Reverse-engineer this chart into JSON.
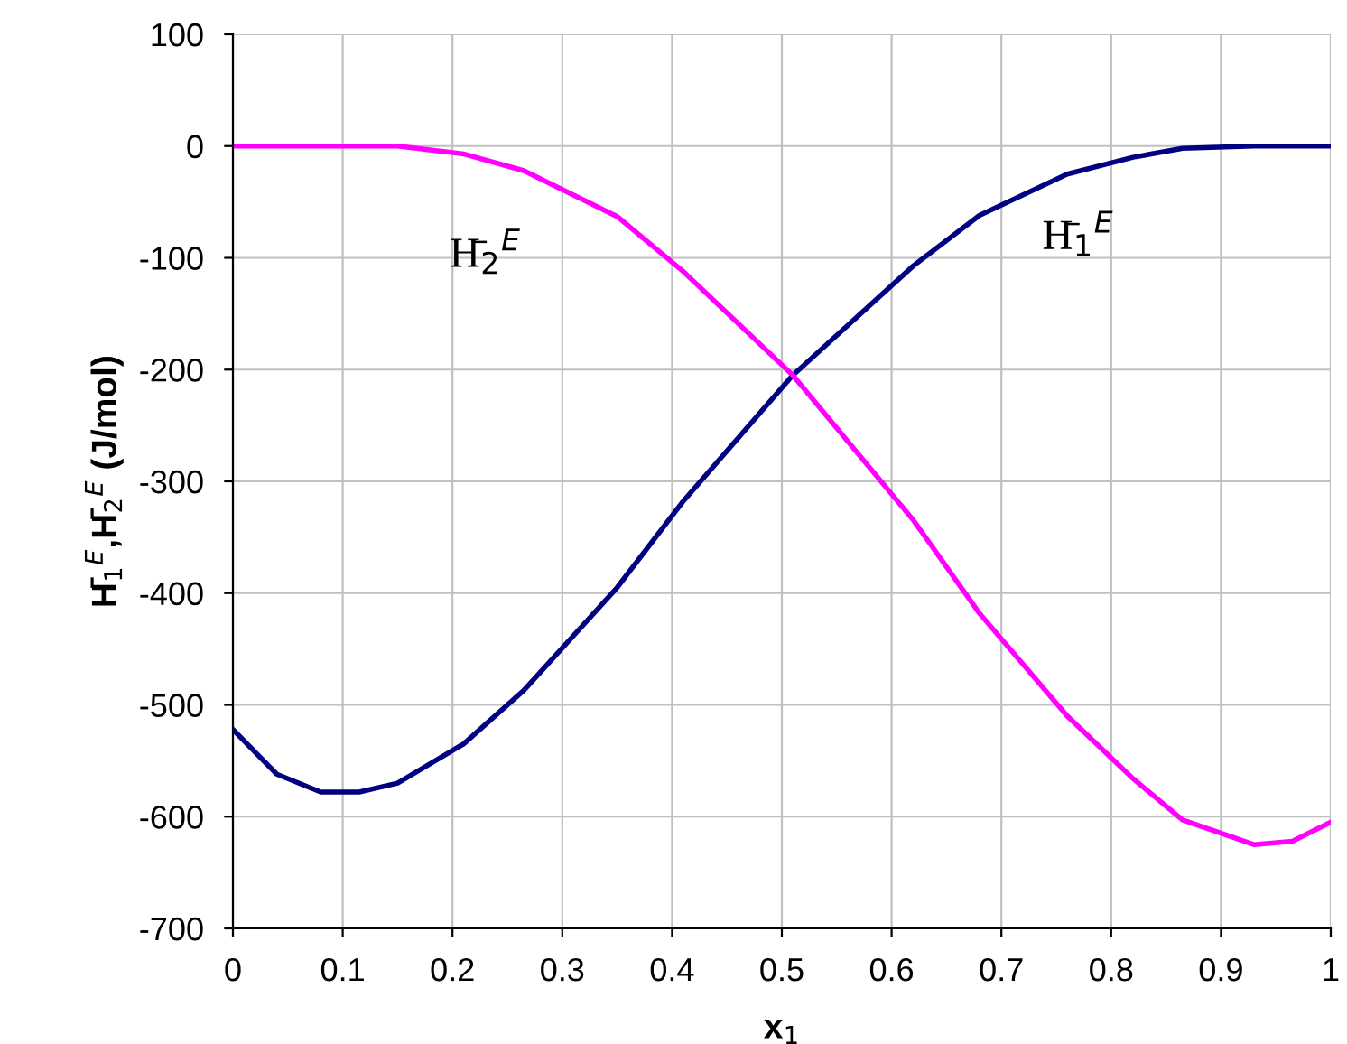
{
  "chart_data": {
    "type": "line",
    "xlabel": "x$_{1}$",
    "ylabel": "H̄$_{1}$$^{E}$,H̄$_{2}$$^{E}$ (J/mol)",
    "series": [
      {
        "color": "#000080",
        "x": [
          0,
          0.04,
          0.08,
          0.115,
          0.15,
          0.21,
          0.265,
          0.35,
          0.41,
          0.51,
          0.62,
          0.68,
          0.76,
          0.82,
          0.865,
          0.93,
          1
        ],
        "values": [
          -522,
          -562,
          -578,
          -578,
          -570,
          -535,
          -487,
          -395,
          -318,
          -205,
          -107,
          -62,
          -25,
          -10,
          -2,
          0,
          0
        ]
      },
      {
        "color": "#ff00ff",
        "x": [
          0,
          0.04,
          0.08,
          0.115,
          0.15,
          0.21,
          0.265,
          0.35,
          0.41,
          0.51,
          0.62,
          0.68,
          0.76,
          0.82,
          0.865,
          0.93,
          0.965,
          1
        ],
        "values": [
          0,
          0,
          0,
          0,
          0,
          -7,
          -22,
          -63,
          -112,
          -205,
          -335,
          -418,
          -510,
          -566,
          -603,
          -625,
          -622,
          -605
        ]
      }
    ],
    "annotations": [
      "H̄$_{2}$$^{E}$",
      "H̄$_{1}$$^{E}$"
    ],
    "xlim": [
      0,
      1
    ],
    "xticks": [
      0,
      0.1,
      0.2,
      0.3,
      0.4,
      0.5,
      0.6,
      0.7,
      0.8,
      0.9,
      1
    ],
    "ylim": [
      -700,
      100
    ],
    "yticks": [
      -700,
      -600,
      -500,
      -400,
      -300,
      -200,
      -100,
      0,
      100
    ],
    "grid": true,
    "marker": "none",
    "line_style": "solid",
    "legend": false
  }
}
